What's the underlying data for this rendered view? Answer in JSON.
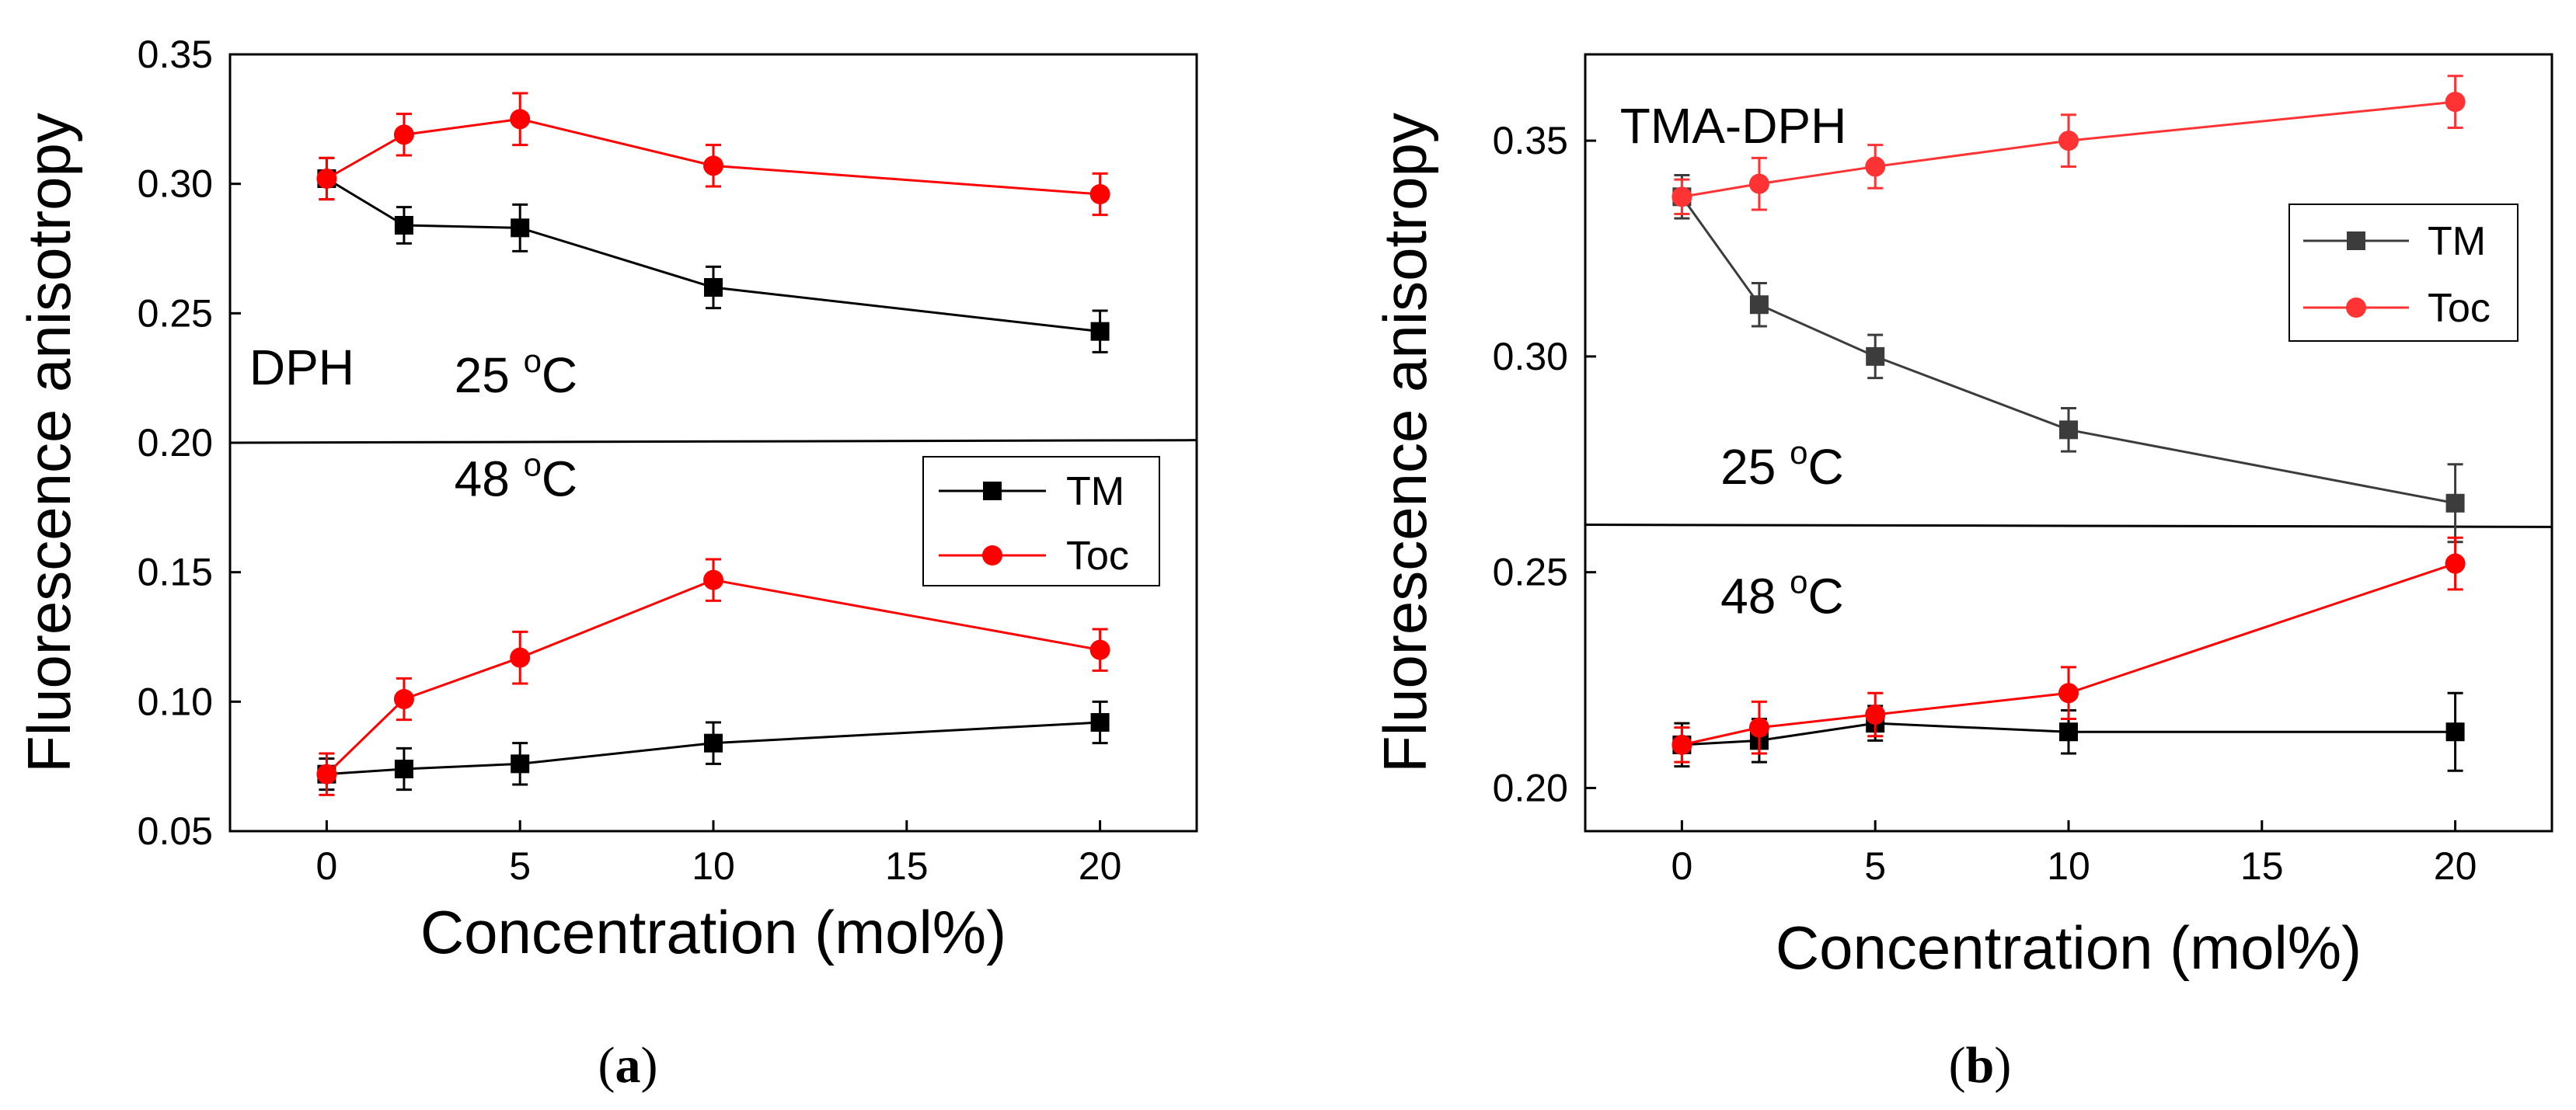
{
  "chart_data": [
    {
      "type": "line",
      "panel_label": "a",
      "xlabel": "Concentration (mol%)",
      "ylabel": "Fluorescence anisotropy",
      "xlim": [
        -2.5,
        22.5
      ],
      "ylim": [
        0.05,
        0.35
      ],
      "xticks": [
        0,
        5,
        10,
        15,
        20
      ],
      "yticks": [
        0.05,
        0.1,
        0.15,
        0.2,
        0.25,
        0.3,
        0.35
      ],
      "ytick_labels": [
        "0.05",
        "0.10",
        "0.15",
        "0.20",
        "0.25",
        "0.30",
        "0.35"
      ],
      "divider": {
        "y_start": 0.2,
        "y_end": 0.201
      },
      "annotations": [
        {
          "id": "probe",
          "text": "DPH",
          "x": -2.0,
          "y": 0.2225
        },
        {
          "id": "temp-upper",
          "text": "25 ",
          "sup": "o",
          "after": "C",
          "x": 3.3,
          "y": 0.2195
        },
        {
          "id": "temp-lower",
          "text": "48 ",
          "sup": "o",
          "after": "C",
          "x": 3.3,
          "y": 0.1795
        }
      ],
      "legend": {
        "placement": "lower-right-of-upper-half",
        "entries": [
          "TM",
          "Toc"
        ]
      },
      "series": [
        {
          "name": "TM",
          "temperature": "25 °C",
          "color": "#000000",
          "marker": "square",
          "x": [
            0,
            2,
            5,
            10,
            20
          ],
          "y": [
            0.302,
            0.284,
            0.283,
            0.26,
            0.243
          ],
          "err": [
            0.008,
            0.007,
            0.009,
            0.008,
            0.008
          ]
        },
        {
          "name": "Toc",
          "temperature": "25 °C",
          "color": "#ff0000",
          "marker": "circle",
          "x": [
            0,
            2,
            5,
            10,
            20
          ],
          "y": [
            0.302,
            0.319,
            0.325,
            0.307,
            0.296
          ],
          "err": [
            0.008,
            0.008,
            0.01,
            0.008,
            0.008
          ]
        },
        {
          "name": "TM",
          "temperature": "48 °C",
          "color": "#000000",
          "marker": "square",
          "x": [
            0,
            2,
            5,
            10,
            20
          ],
          "y": [
            0.072,
            0.074,
            0.076,
            0.084,
            0.092
          ],
          "err": [
            0.006,
            0.008,
            0.008,
            0.008,
            0.008
          ]
        },
        {
          "name": "Toc",
          "temperature": "48 °C",
          "color": "#ff0000",
          "marker": "circle",
          "x": [
            0,
            2,
            5,
            10,
            20
          ],
          "y": [
            0.072,
            0.101,
            0.117,
            0.147,
            0.12
          ],
          "err": [
            0.008,
            0.008,
            0.01,
            0.008,
            0.008
          ]
        }
      ]
    },
    {
      "type": "line",
      "panel_label": "b",
      "xlabel": "Concentration (mol%)",
      "ylabel": "Fluorescence anisotropy",
      "xlim": [
        -2.5,
        22.5
      ],
      "ylim": [
        0.19,
        0.37
      ],
      "xticks": [
        0,
        5,
        10,
        15,
        20
      ],
      "yticks": [
        0.2,
        0.25,
        0.3,
        0.35
      ],
      "ytick_labels": [
        "0.20",
        "0.25",
        "0.30",
        "0.35"
      ],
      "divider": {
        "y_start": 0.261,
        "y_end": 0.2605
      },
      "annotations": [
        {
          "id": "probe",
          "text": "TMA-DPH",
          "x": -1.6,
          "y": 0.3495
        },
        {
          "id": "temp-upper",
          "text": "25 ",
          "sup": "o",
          "after": "C",
          "x": 1.0,
          "y": 0.2705
        },
        {
          "id": "temp-lower",
          "text": "48 ",
          "sup": "o",
          "after": "C",
          "x": 1.0,
          "y": 0.2405
        }
      ],
      "legend": {
        "placement": "upper-right",
        "entries": [
          "TM",
          "Toc"
        ]
      },
      "series": [
        {
          "name": "TM",
          "temperature": "25 °C",
          "color": "#3c3c3c",
          "marker": "square",
          "x": [
            0,
            2,
            5,
            10,
            20
          ],
          "y": [
            0.337,
            0.312,
            0.3,
            0.283,
            0.266
          ],
          "err": [
            0.005,
            0.005,
            0.005,
            0.005,
            0.009
          ]
        },
        {
          "name": "Toc",
          "temperature": "25 °C",
          "color": "#ff3333",
          "marker": "circle",
          "x": [
            0,
            2,
            5,
            10,
            20
          ],
          "y": [
            0.337,
            0.34,
            0.344,
            0.35,
            0.359
          ],
          "err": [
            0.004,
            0.006,
            0.005,
            0.006,
            0.006
          ]
        },
        {
          "name": "TM",
          "temperature": "48 °C",
          "color": "#000000",
          "marker": "square",
          "x": [
            0,
            2,
            5,
            10,
            20
          ],
          "y": [
            0.21,
            0.211,
            0.215,
            0.213,
            0.213
          ],
          "err": [
            0.005,
            0.005,
            0.004,
            0.005,
            0.009
          ]
        },
        {
          "name": "Toc",
          "temperature": "48 °C",
          "color": "#ff0000",
          "marker": "circle",
          "x": [
            0,
            2,
            5,
            10,
            20
          ],
          "y": [
            0.21,
            0.214,
            0.217,
            0.222,
            0.252
          ],
          "err": [
            0.004,
            0.006,
            0.005,
            0.006,
            0.006
          ]
        }
      ]
    }
  ]
}
